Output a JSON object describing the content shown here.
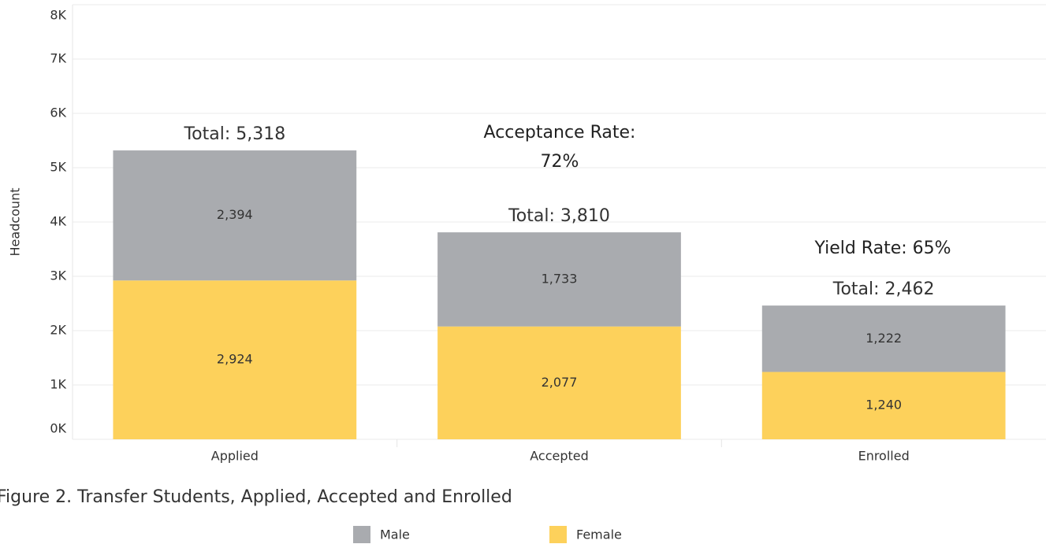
{
  "chart_data": {
    "type": "stacked_bar",
    "caption": "Figure 2. Transfer Students, Applied, Accepted and Enrolled",
    "y_label": "Headcount",
    "categories": [
      "Applied",
      "Accepted",
      "Enrolled"
    ],
    "series": [
      {
        "name": "Female",
        "color": "#fdd15b",
        "values": [
          2924,
          2077,
          1240
        ],
        "value_labels": [
          "2,924",
          "2,077",
          "1,240"
        ]
      },
      {
        "name": "Male",
        "color": "#a9abaf",
        "values": [
          2394,
          1733,
          1222
        ],
        "value_labels": [
          "2,394",
          "1,733",
          "1,222"
        ]
      }
    ],
    "total_labels": [
      "Total:  5,318",
      "Total:  3,810",
      "Total:  2,462"
    ],
    "annotations": [
      "Acceptance Rate: 72%",
      "Yield Rate:  65%"
    ],
    "ylim": [
      0,
      8000
    ],
    "yticks": [
      {
        "value": 0,
        "label": "0K"
      },
      {
        "value": 1000,
        "label": "1K"
      },
      {
        "value": 2000,
        "label": "2K"
      },
      {
        "value": 3000,
        "label": "3K"
      },
      {
        "value": 4000,
        "label": "4K"
      },
      {
        "value": 5000,
        "label": "5K"
      },
      {
        "value": 6000,
        "label": "6K"
      },
      {
        "value": 7000,
        "label": "7K"
      },
      {
        "value": 8000,
        "label": "8K"
      }
    ],
    "grid": true
  }
}
